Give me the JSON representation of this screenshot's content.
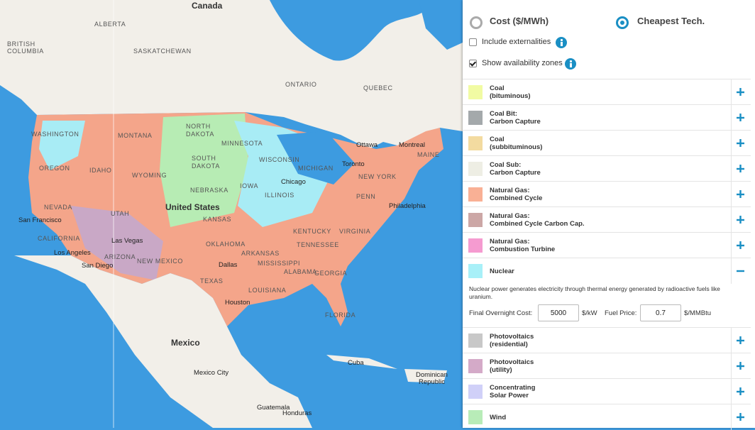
{
  "map": {
    "labels": [
      "Canada",
      "ALBERTA",
      "BRITISH",
      "COLUMBIA",
      "SASKATCHEWAN",
      "ONTARIO",
      "QUEBEC",
      "WASHINGTON",
      "MONTANA",
      "NORTH",
      "DAKOTA",
      "MINNESOTA",
      "SOUTH",
      "DAKOTA",
      "OREGON",
      "IDAHO",
      "WYOMING",
      "WISCONSIN",
      "MICHIGAN",
      "NEW YORK",
      "NEBRASKA",
      "IOWA",
      "ILLINOIS",
      "NEVADA",
      "UTAH",
      "United States",
      "KANSAS",
      "PENN",
      "CALIFORNIA",
      "ARIZONA",
      "NEW MEXICO",
      "OKLAHOMA",
      "ARKANSAS",
      "TENNESSEE",
      "MISSISSIPPI",
      "ALABAMA",
      "GEORGIA",
      "TEXAS",
      "LOUISIANA",
      "FLORIDA",
      "KENTUCKY",
      "VIRGINIA",
      "MAINE",
      "San Francisco",
      "Los Angeles",
      "Las Vegas",
      "San Diego",
      "Dallas",
      "Houston",
      "Chicago",
      "Toronto",
      "Ottawa",
      "Montreal",
      "Philadelphia",
      "Mexico",
      "Mexico City",
      "Cuba",
      "Dominican",
      "Republic",
      "Guatemala",
      "Honduras"
    ]
  },
  "panel": {
    "modes": [
      "Cost ($/MWh)",
      "Cheapest Tech."
    ],
    "options": [
      "Include externalities",
      "Show availability zones"
    ],
    "technologies": [
      {
        "lines": [
          "Coal",
          "(bituminous)"
        ],
        "color": "#f1fba3"
      },
      {
        "lines": [
          "Coal Bit:",
          "Carbon Capture"
        ],
        "color": "#a4a9ab"
      },
      {
        "lines": [
          "Coal",
          "(subbituminous)"
        ],
        "color": "#f3dba0"
      },
      {
        "lines": [
          "Coal Sub:",
          "Carbon Capture"
        ],
        "color": "#eeeee4"
      },
      {
        "lines": [
          "Natural Gas:",
          "Combined Cycle"
        ],
        "color": "#f9b095"
      },
      {
        "lines": [
          "Natural Gas:",
          "Combined Cycle Carbon Cap."
        ],
        "color": "#cca7a6"
      },
      {
        "lines": [
          "Natural Gas:",
          "Combustion Turbine"
        ],
        "color": "#f59bd0"
      },
      {
        "lines": [
          "Nuclear"
        ],
        "color": "#a8f0f8",
        "details": {
          "description": "Nuclear power generates electricity through thermal energy generated by radioactive fuels like uranium.",
          "fields": [
            {
              "label": "Final Overnight Cost:",
              "value": "5000",
              "unit": "$/kW"
            },
            {
              "label": "Fuel Price:",
              "value": "0.7",
              "unit": "$/MMBtu"
            }
          ]
        }
      },
      {
        "lines": [
          "Photovoltaics",
          "(residential)"
        ],
        "color": "#c8c8c8"
      },
      {
        "lines": [
          "Photovoltaics",
          "(utility)"
        ],
        "color": "#d4aac8"
      },
      {
        "lines": [
          "Concentrating",
          "Solar Power"
        ],
        "color": "#d0d0f8"
      },
      {
        "lines": [
          "Wind"
        ],
        "color": "#b8ecb8"
      }
    ]
  }
}
